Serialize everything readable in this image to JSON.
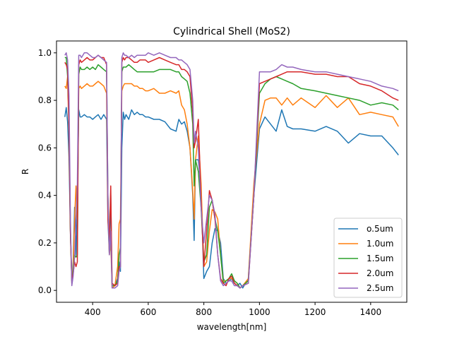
{
  "chart_data": {
    "type": "line",
    "title": "Cylindrical Shell (MoS2)",
    "xlabel": "wavelength[nm]",
    "ylabel": "R",
    "xlim": [
      270,
      1530
    ],
    "ylim": [
      -0.05,
      1.05
    ],
    "xticks": [
      400,
      600,
      800,
      1000,
      1200,
      1400
    ],
    "xtick_labels": [
      "400",
      "600",
      "800",
      "1000",
      "1200",
      "1400"
    ],
    "yticks": [
      0.0,
      0.2,
      0.4,
      0.6,
      0.8,
      1.0
    ],
    "ytick_labels": [
      "0.0",
      "0.2",
      "0.4",
      "0.6",
      "0.8",
      "1.0"
    ],
    "grid": false,
    "legend_position": "lower-right",
    "series": [
      {
        "name": "o.5um",
        "color": "#1f77b4",
        "x": [
          300,
          305,
          310,
          315,
          320,
          325,
          330,
          335,
          340,
          345,
          350,
          355,
          360,
          370,
          380,
          390,
          400,
          410,
          420,
          430,
          440,
          450,
          455,
          460,
          465,
          470,
          480,
          490,
          495,
          500,
          505,
          510,
          515,
          520,
          530,
          540,
          550,
          560,
          570,
          580,
          590,
          600,
          620,
          640,
          660,
          680,
          700,
          710,
          720,
          730,
          740,
          750,
          760,
          765,
          770,
          780,
          790,
          800,
          810,
          820,
          830,
          840,
          850,
          860,
          870,
          880,
          890,
          900,
          910,
          920,
          930,
          940,
          960,
          980,
          1000,
          1020,
          1040,
          1060,
          1080,
          1100,
          1120,
          1150,
          1200,
          1240,
          1280,
          1320,
          1360,
          1400,
          1440,
          1480,
          1500
        ],
        "y": [
          0.73,
          0.77,
          0.71,
          0.56,
          0.24,
          0.03,
          0.12,
          0.35,
          0.15,
          0.35,
          0.76,
          0.73,
          0.73,
          0.74,
          0.73,
          0.73,
          0.72,
          0.73,
          0.74,
          0.72,
          0.74,
          0.72,
          0.3,
          0.15,
          0.4,
          0.02,
          0.02,
          0.05,
          0.12,
          0.08,
          0.6,
          0.75,
          0.72,
          0.74,
          0.72,
          0.76,
          0.74,
          0.75,
          0.74,
          0.74,
          0.73,
          0.73,
          0.72,
          0.72,
          0.71,
          0.68,
          0.67,
          0.72,
          0.7,
          0.71,
          0.67,
          0.6,
          0.4,
          0.21,
          0.55,
          0.55,
          0.43,
          0.05,
          0.08,
          0.1,
          0.2,
          0.26,
          0.25,
          0.2,
          0.05,
          0.03,
          0.04,
          0.05,
          0.03,
          0.02,
          0.03,
          0.01,
          0.05,
          0.4,
          0.68,
          0.73,
          0.7,
          0.67,
          0.76,
          0.69,
          0.68,
          0.68,
          0.67,
          0.69,
          0.67,
          0.62,
          0.66,
          0.65,
          0.65,
          0.6,
          0.57
        ]
      },
      {
        "name": "1.0um",
        "color": "#ff7f0e",
        "x": [
          300,
          305,
          310,
          315,
          320,
          325,
          330,
          335,
          340,
          345,
          350,
          355,
          360,
          370,
          380,
          390,
          400,
          410,
          420,
          430,
          440,
          450,
          455,
          460,
          465,
          470,
          480,
          490,
          495,
          500,
          505,
          510,
          515,
          520,
          530,
          540,
          550,
          560,
          570,
          580,
          590,
          600,
          620,
          640,
          660,
          680,
          700,
          710,
          720,
          730,
          740,
          750,
          760,
          765,
          770,
          780,
          790,
          800,
          810,
          820,
          830,
          840,
          850,
          860,
          870,
          880,
          890,
          900,
          910,
          920,
          930,
          940,
          960,
          980,
          1000,
          1020,
          1040,
          1060,
          1080,
          1100,
          1120,
          1150,
          1200,
          1240,
          1280,
          1320,
          1360,
          1400,
          1440,
          1480,
          1500
        ],
        "y": [
          0.86,
          0.85,
          0.9,
          0.66,
          0.24,
          0.03,
          0.1,
          0.3,
          0.44,
          0.3,
          0.85,
          0.86,
          0.85,
          0.86,
          0.87,
          0.86,
          0.86,
          0.87,
          0.88,
          0.87,
          0.86,
          0.83,
          0.35,
          0.15,
          0.2,
          0.01,
          0.02,
          0.1,
          0.28,
          0.3,
          0.84,
          0.86,
          0.87,
          0.87,
          0.87,
          0.87,
          0.86,
          0.86,
          0.85,
          0.85,
          0.84,
          0.84,
          0.85,
          0.83,
          0.83,
          0.84,
          0.83,
          0.84,
          0.78,
          0.76,
          0.7,
          0.6,
          0.42,
          0.3,
          0.55,
          0.65,
          0.45,
          0.1,
          0.12,
          0.25,
          0.34,
          0.33,
          0.3,
          0.15,
          0.04,
          0.04,
          0.05,
          0.05,
          0.04,
          0.03,
          0.01,
          0.02,
          0.05,
          0.45,
          0.7,
          0.8,
          0.81,
          0.81,
          0.78,
          0.81,
          0.78,
          0.81,
          0.77,
          0.82,
          0.77,
          0.81,
          0.74,
          0.75,
          0.74,
          0.73,
          0.69
        ]
      },
      {
        "name": "1.5um",
        "color": "#2ca02c",
        "x": [
          300,
          305,
          310,
          315,
          320,
          325,
          330,
          335,
          340,
          345,
          350,
          355,
          360,
          370,
          380,
          390,
          400,
          410,
          420,
          430,
          440,
          450,
          455,
          460,
          465,
          470,
          480,
          490,
          495,
          500,
          505,
          510,
          515,
          520,
          530,
          540,
          550,
          560,
          570,
          580,
          590,
          600,
          620,
          640,
          660,
          680,
          700,
          710,
          720,
          730,
          740,
          750,
          760,
          765,
          770,
          780,
          790,
          800,
          810,
          820,
          830,
          840,
          850,
          860,
          870,
          880,
          890,
          900,
          910,
          920,
          930,
          940,
          960,
          980,
          1000,
          1020,
          1040,
          1060,
          1080,
          1100,
          1120,
          1150,
          1200,
          1240,
          1280,
          1320,
          1360,
          1400,
          1440,
          1480,
          1500
        ],
        "y": [
          0.98,
          0.98,
          0.9,
          0.7,
          0.25,
          0.04,
          0.08,
          0.15,
          0.14,
          0.15,
          0.91,
          0.94,
          0.93,
          0.93,
          0.94,
          0.93,
          0.94,
          0.93,
          0.95,
          0.94,
          0.93,
          0.92,
          0.4,
          0.2,
          0.25,
          0.02,
          0.02,
          0.04,
          0.15,
          0.18,
          0.92,
          0.94,
          0.94,
          0.94,
          0.95,
          0.94,
          0.93,
          0.92,
          0.92,
          0.92,
          0.92,
          0.92,
          0.92,
          0.93,
          0.93,
          0.93,
          0.92,
          0.92,
          0.9,
          0.89,
          0.88,
          0.83,
          0.7,
          0.44,
          0.55,
          0.5,
          0.35,
          0.12,
          0.15,
          0.35,
          0.38,
          0.3,
          0.25,
          0.15,
          0.03,
          0.04,
          0.05,
          0.07,
          0.04,
          0.03,
          0.01,
          0.02,
          0.04,
          0.4,
          0.83,
          0.87,
          0.89,
          0.9,
          0.89,
          0.88,
          0.87,
          0.85,
          0.84,
          0.83,
          0.82,
          0.81,
          0.8,
          0.78,
          0.79,
          0.78,
          0.76
        ]
      },
      {
        "name": "2.0um",
        "color": "#d62728",
        "x": [
          300,
          305,
          310,
          315,
          320,
          325,
          330,
          335,
          340,
          345,
          350,
          355,
          360,
          370,
          380,
          390,
          400,
          410,
          420,
          430,
          440,
          450,
          455,
          460,
          465,
          470,
          480,
          490,
          495,
          500,
          505,
          510,
          515,
          520,
          530,
          540,
          550,
          560,
          570,
          580,
          590,
          600,
          620,
          640,
          660,
          680,
          700,
          710,
          720,
          730,
          740,
          750,
          760,
          765,
          770,
          780,
          790,
          800,
          810,
          820,
          830,
          840,
          850,
          860,
          870,
          880,
          890,
          900,
          910,
          920,
          930,
          940,
          960,
          980,
          1000,
          1020,
          1040,
          1060,
          1080,
          1100,
          1120,
          1150,
          1200,
          1240,
          1280,
          1320,
          1360,
          1400,
          1440,
          1480,
          1500
        ],
        "y": [
          0.96,
          0.95,
          0.93,
          0.68,
          0.25,
          0.04,
          0.07,
          0.12,
          0.1,
          0.12,
          0.95,
          0.97,
          0.96,
          0.97,
          0.98,
          0.97,
          0.97,
          0.98,
          0.99,
          0.98,
          0.98,
          0.95,
          0.3,
          0.2,
          0.44,
          0.03,
          0.02,
          0.03,
          0.1,
          0.1,
          0.96,
          0.98,
          0.97,
          0.98,
          0.98,
          0.97,
          0.96,
          0.96,
          0.97,
          0.97,
          0.97,
          0.96,
          0.97,
          0.98,
          0.97,
          0.96,
          0.95,
          0.95,
          0.93,
          0.93,
          0.92,
          0.9,
          0.75,
          0.6,
          0.63,
          0.72,
          0.38,
          0.1,
          0.25,
          0.42,
          0.38,
          0.3,
          0.15,
          0.05,
          0.03,
          0.02,
          0.05,
          0.06,
          0.03,
          0.02,
          0.01,
          0.02,
          0.03,
          0.4,
          0.87,
          0.88,
          0.89,
          0.9,
          0.91,
          0.92,
          0.92,
          0.92,
          0.91,
          0.91,
          0.9,
          0.9,
          0.87,
          0.86,
          0.84,
          0.81,
          0.8
        ]
      },
      {
        "name": "2.5um",
        "color": "#9467bd",
        "x": [
          300,
          305,
          310,
          315,
          320,
          325,
          330,
          335,
          340,
          345,
          350,
          355,
          360,
          370,
          380,
          390,
          400,
          410,
          420,
          430,
          440,
          450,
          455,
          460,
          465,
          470,
          480,
          490,
          495,
          500,
          505,
          510,
          515,
          520,
          530,
          540,
          550,
          560,
          570,
          580,
          590,
          600,
          620,
          640,
          660,
          680,
          700,
          710,
          720,
          730,
          740,
          750,
          760,
          765,
          770,
          780,
          790,
          800,
          810,
          820,
          830,
          840,
          850,
          860,
          870,
          880,
          890,
          900,
          910,
          920,
          930,
          940,
          960,
          980,
          1000,
          1020,
          1040,
          1060,
          1080,
          1100,
          1120,
          1150,
          1200,
          1240,
          1280,
          1320,
          1360,
          1400,
          1440,
          1480,
          1500
        ],
        "y": [
          0.99,
          1.0,
          0.97,
          0.82,
          0.3,
          0.02,
          0.06,
          0.14,
          0.3,
          0.45,
          0.99,
          0.99,
          0.98,
          1.0,
          1.0,
          0.99,
          0.98,
          0.98,
          0.99,
          0.98,
          0.97,
          0.96,
          0.4,
          0.15,
          0.25,
          0.01,
          0.01,
          0.02,
          0.08,
          0.1,
          0.98,
          1.0,
          0.99,
          0.99,
          0.98,
          0.99,
          0.98,
          0.99,
          0.99,
          0.99,
          0.99,
          1.0,
          0.99,
          1.0,
          0.99,
          0.98,
          0.98,
          0.97,
          0.97,
          0.96,
          0.95,
          0.93,
          0.8,
          0.62,
          0.67,
          0.6,
          0.35,
          0.2,
          0.3,
          0.4,
          0.38,
          0.32,
          0.15,
          0.04,
          0.02,
          0.03,
          0.04,
          0.04,
          0.02,
          0.02,
          0.01,
          0.02,
          0.03,
          0.4,
          0.92,
          0.92,
          0.92,
          0.93,
          0.95,
          0.94,
          0.94,
          0.93,
          0.92,
          0.92,
          0.91,
          0.9,
          0.89,
          0.88,
          0.86,
          0.85,
          0.84
        ]
      }
    ]
  }
}
